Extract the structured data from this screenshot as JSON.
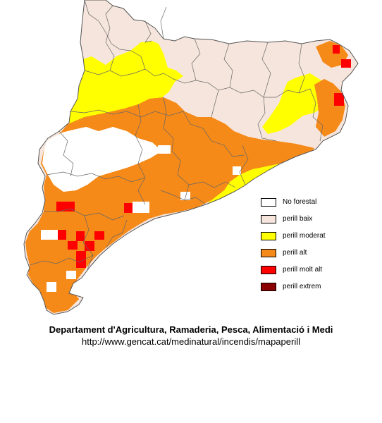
{
  "legend": {
    "items": [
      {
        "label": "No forestal",
        "color": "#ffffff"
      },
      {
        "label": "perill baix",
        "color": "#f6e5dc"
      },
      {
        "label": "perill moderat",
        "color": "#ffff00"
      },
      {
        "label": "perill alt",
        "color": "#f58a19"
      },
      {
        "label": "perill molt alt",
        "color": "#ff0000"
      },
      {
        "label": "perill extrem",
        "color": "#8b0000"
      }
    ]
  },
  "credit": {
    "title": "Departament d'Agricultura, Ramaderia, Pesca, Alimentació i Medi",
    "url": "http://www.gencat.cat/medinatural/incendis/mapaperill"
  }
}
